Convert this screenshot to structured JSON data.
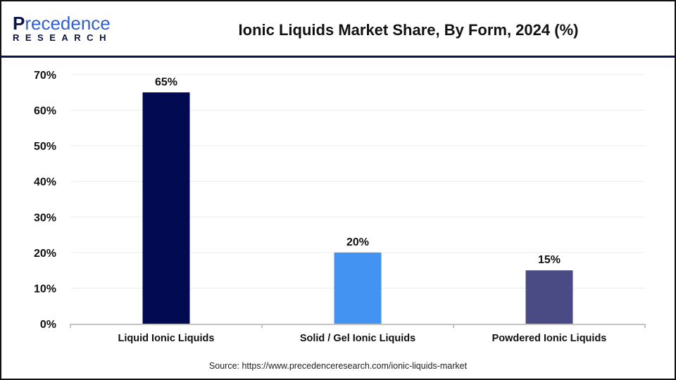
{
  "logo": {
    "brand_initial": "P",
    "brand_rest": "recedence",
    "line2": "RESEARCH"
  },
  "title": "Ionic Liquids Market Share, By Form, 2024 (%)",
  "source": "Source: https://www.precedenceresearch.com/ionic-liquids-market",
  "chart_data": {
    "type": "bar",
    "title": "Ionic Liquids Market Share, By Form, 2024 (%)",
    "categories": [
      "Liquid Ionic Liquids",
      "Solid / Gel Ionic Liquids",
      "Powdered Ionic Liquids"
    ],
    "values": [
      65,
      20,
      15
    ],
    "data_labels": [
      "65%",
      "20%",
      "15%"
    ],
    "colors": [
      "#020a52",
      "#4394f2",
      "#4a4a85"
    ],
    "ylim": [
      0,
      70
    ],
    "yticks": [
      0,
      10,
      20,
      30,
      40,
      50,
      60,
      70
    ],
    "ytick_labels": [
      "0%",
      "10%",
      "20%",
      "30%",
      "40%",
      "50%",
      "60%",
      "70%"
    ],
    "grid": true,
    "xlabel": "",
    "ylabel": ""
  }
}
